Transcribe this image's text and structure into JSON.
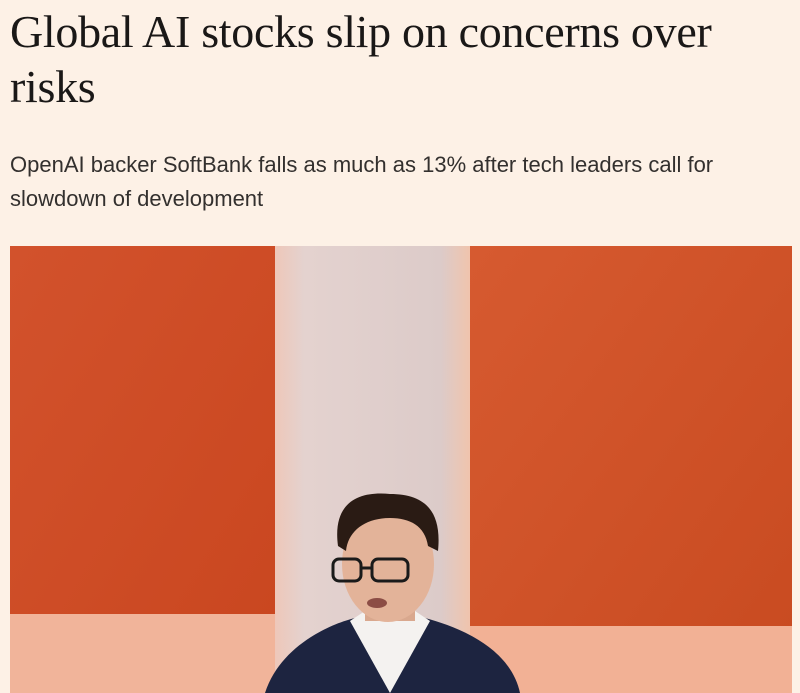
{
  "headline": "Global AI stocks slip on concerns over risks",
  "standfirst": "OpenAI backer SoftBank falls as much as 13% after tech leaders call for slowdown of development"
}
